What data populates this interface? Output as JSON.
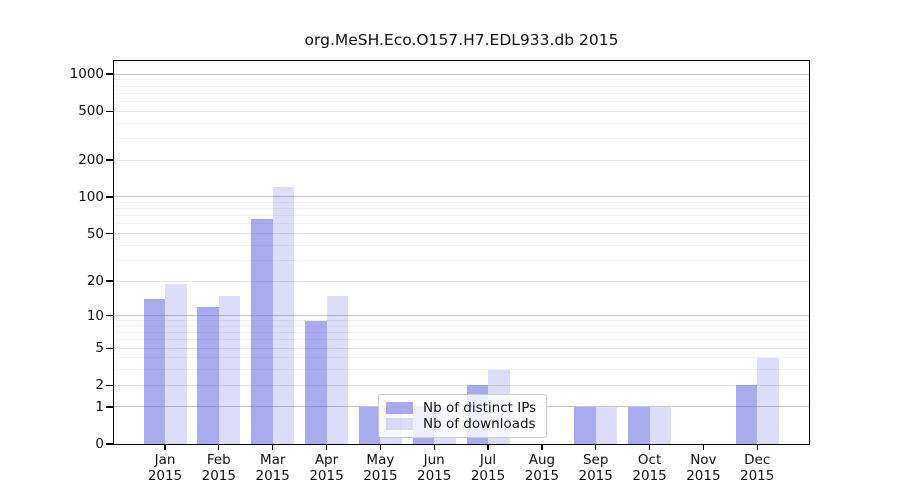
{
  "title": "org.MeSH.Eco.O157.H7.EDL933.db 2015",
  "year": "2015",
  "chart_data": {
    "type": "bar",
    "title": "org.MeSH.Eco.O157.H7.EDL933.db 2015",
    "categories": [
      "Jan 2015",
      "Feb 2015",
      "Mar 2015",
      "Apr 2015",
      "May 2015",
      "Jun 2015",
      "Jul 2015",
      "Aug 2015",
      "Sep 2015",
      "Oct 2015",
      "Nov 2015",
      "Dec 2015"
    ],
    "series": [
      {
        "name": "Nb of distinct IPs",
        "color": "rgba(85,85,224,0.5)",
        "values": [
          14,
          12,
          66,
          9,
          1,
          1,
          2,
          0,
          1,
          1,
          0,
          2
        ]
      },
      {
        "name": "Nb of downloads",
        "color": "rgba(85,85,224,0.2)",
        "values": [
          19,
          15,
          120,
          15,
          1,
          1,
          3,
          0,
          1,
          1,
          0,
          4
        ]
      }
    ],
    "yticks": [
      0,
      1,
      2,
      5,
      10,
      20,
      50,
      100,
      200,
      500,
      1000
    ],
    "ylim": [
      0,
      1400
    ],
    "yscale": "log10(1+x)",
    "xlabel": "",
    "ylabel": "",
    "grid": "both (decade lines darker, log minors faint)",
    "legend_position": "lower center"
  },
  "colors": {
    "axis": "#000000",
    "decade_gridline": "#c6c6c6",
    "labeled_minor_gridline": "#e4e4e4",
    "minor_gridline": "#f0f0f0",
    "legend_border": "#cccccc",
    "background": "#ffffff"
  }
}
